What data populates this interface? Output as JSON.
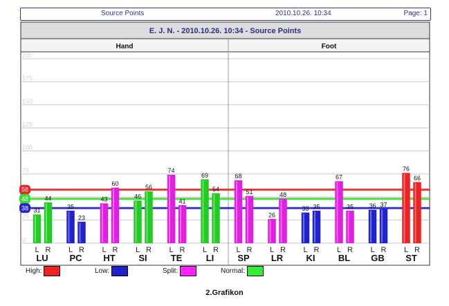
{
  "header": {
    "left": "Source Points",
    "middle": "2010.10.26. 10:34",
    "right": "Page: 1"
  },
  "chart_data": {
    "type": "bar",
    "title": "E. J. N. - 2010.10.26. 10:34 - Source Points",
    "sections": [
      "Hand",
      "Foot"
    ],
    "ylim": [
      0,
      200
    ],
    "yticks": [
      0,
      25,
      50,
      75,
      100,
      125,
      150,
      175,
      200
    ],
    "grid": true,
    "bar_sublabels": [
      "L",
      "R"
    ],
    "reference_lines": [
      {
        "name": "High",
        "value": 58,
        "color": "#ee2222"
      },
      {
        "name": "Normal",
        "value": 48,
        "color": "#33dd33"
      },
      {
        "name": "Low",
        "value": 38,
        "color": "#2222cc"
      }
    ],
    "groups": [
      {
        "name": "LU",
        "section": "Hand",
        "L": 31,
        "R": 44,
        "L_status": "Normal",
        "R_status": "Normal"
      },
      {
        "name": "PC",
        "section": "Hand",
        "L": 35,
        "R": 23,
        "L_status": "Low",
        "R_status": "Low"
      },
      {
        "name": "HT",
        "section": "Hand",
        "L": 43,
        "R": 60,
        "L_status": "Split",
        "R_status": "Split"
      },
      {
        "name": "SI",
        "section": "Hand",
        "L": 46,
        "R": 56,
        "L_status": "Normal",
        "R_status": "Normal"
      },
      {
        "name": "TE",
        "section": "Hand",
        "L": 74,
        "R": 41,
        "L_status": "Split",
        "R_status": "Split"
      },
      {
        "name": "LI",
        "section": "Hand",
        "L": 69,
        "R": 54,
        "L_status": "Normal",
        "R_status": "Normal"
      },
      {
        "name": "SP",
        "section": "Foot",
        "L": 68,
        "R": 51,
        "L_status": "Split",
        "R_status": "Split"
      },
      {
        "name": "LR",
        "section": "Foot",
        "L": 26,
        "R": 48,
        "L_status": "Split",
        "R_status": "Split"
      },
      {
        "name": "KI",
        "section": "Foot",
        "L": 33,
        "R": 35,
        "L_status": "Low",
        "R_status": "Low"
      },
      {
        "name": "BL",
        "section": "Foot",
        "L": 67,
        "R": 35,
        "L_status": "Split",
        "R_status": "Split"
      },
      {
        "name": "GB",
        "section": "Foot",
        "L": 36,
        "R": 37,
        "L_status": "Low",
        "R_status": "Low"
      },
      {
        "name": "ST",
        "section": "Foot",
        "L": 76,
        "R": 66,
        "L_status": "High",
        "R_status": "High"
      }
    ],
    "status_colors": {
      "High": "#ee2222",
      "Low": "#2222cc",
      "Split": "#e020e0",
      "Normal": "#22cc22"
    }
  },
  "legend": {
    "items": [
      {
        "label": "High:",
        "color": "#ee2222"
      },
      {
        "label": "Low:",
        "color": "#2222cc"
      },
      {
        "label": "Split:",
        "color": "#ff22ff"
      },
      {
        "label": "Normal:",
        "color": "#33ee33"
      }
    ]
  },
  "caption": "2.Grafikon"
}
